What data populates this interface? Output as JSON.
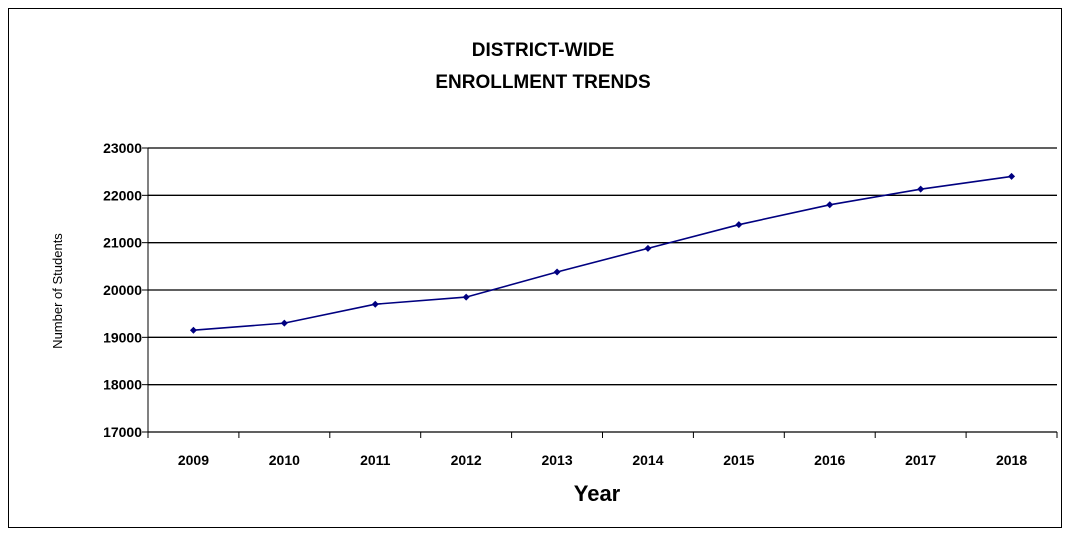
{
  "chart_data": {
    "type": "line",
    "title_lines": [
      "DISTRICT-WIDE",
      "ENROLLMENT TRENDS"
    ],
    "xlabel": "Year",
    "ylabel": "Number of Students",
    "categories": [
      "2009",
      "2010",
      "2011",
      "2012",
      "2013",
      "2014",
      "2015",
      "2016",
      "2017",
      "2018"
    ],
    "series": [
      {
        "values": [
          19150,
          19300,
          19700,
          19850,
          20380,
          20880,
          21380,
          21800,
          22130,
          22400
        ]
      }
    ],
    "ylim": [
      17000,
      23000
    ],
    "yticks": [
      "17000",
      "18000",
      "19000",
      "20000",
      "21000",
      "22000",
      "23000"
    ],
    "grid": true,
    "legend": "none",
    "colors": {
      "line": "#000080",
      "gridline": "#000000",
      "axis": "#000000"
    }
  }
}
